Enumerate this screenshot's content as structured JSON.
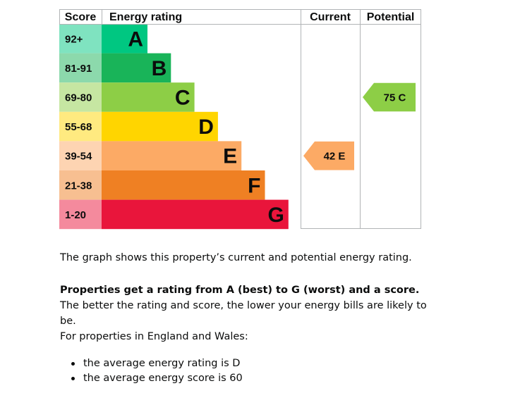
{
  "chart_data": {
    "type": "bar",
    "columns": {
      "score": "Score",
      "rating": "Energy rating",
      "current": "Current",
      "potential": "Potential"
    },
    "bands": [
      {
        "score": "92+",
        "letter": "A",
        "color": "#00c781",
        "score_bg": "#7fe3c0",
        "lo": 92,
        "hi": 100
      },
      {
        "score": "81-91",
        "letter": "B",
        "color": "#19b459",
        "score_bg": "#8cd9ac",
        "lo": 81,
        "hi": 91
      },
      {
        "score": "69-80",
        "letter": "C",
        "color": "#8dce46",
        "score_bg": "#c6e6a2",
        "lo": 69,
        "hi": 80
      },
      {
        "score": "55-68",
        "letter": "D",
        "color": "#ffd500",
        "score_bg": "#ffea80",
        "lo": 55,
        "hi": 68
      },
      {
        "score": "39-54",
        "letter": "E",
        "color": "#fcaa65",
        "score_bg": "#fdd4b2",
        "lo": 39,
        "hi": 54
      },
      {
        "score": "21-38",
        "letter": "F",
        "color": "#ef8023",
        "score_bg": "#f7bf91",
        "lo": 21,
        "hi": 38
      },
      {
        "score": "1-20",
        "letter": "G",
        "color": "#e9153b",
        "score_bg": "#f48a9d",
        "lo": 1,
        "hi": 20
      }
    ],
    "current": {
      "score": 42,
      "letter": "E",
      "label": "42  E",
      "color": "#fcaa65"
    },
    "potential": {
      "score": 75,
      "letter": "C",
      "label": "75  C",
      "color": "#8dce46"
    }
  },
  "text": {
    "intro": "The graph shows this property’s current and potential energy rating.",
    "rating_bold": "Properties get a rating from A (best) to G (worst) and a score.",
    "rating_rest": " The better the rating and score, the lower your energy bills are likely to be.",
    "region": "For properties in England and Wales:",
    "bullets": [
      "the average energy rating is D",
      "the average energy score is 60"
    ]
  }
}
